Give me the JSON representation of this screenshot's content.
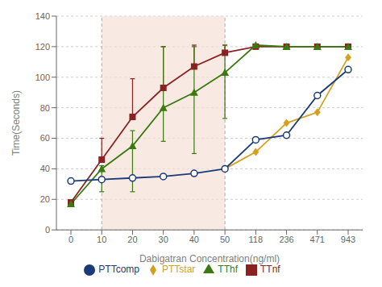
{
  "chart_data": {
    "type": "line",
    "xlabel": "Dabigatran Concentration(ng/ml)",
    "ylabel": "Time(Seconds)",
    "categories": [
      "0",
      "10",
      "20",
      "30",
      "40",
      "50",
      "118",
      "236",
      "471",
      "943"
    ],
    "series": [
      {
        "name": "TTnf",
        "color": "#8B2222",
        "marker": "square",
        "values": [
          18,
          46,
          74,
          93,
          107,
          116,
          120,
          120,
          120,
          120
        ],
        "error_plus": [
          0,
          14,
          25,
          27,
          14,
          5,
          0,
          0,
          0,
          0
        ],
        "error_minus": [
          0,
          0,
          0,
          0,
          0,
          0,
          0,
          0,
          0,
          0
        ]
      },
      {
        "name": "TThf",
        "color": "#3A7A10",
        "marker": "triangle",
        "values": [
          17,
          40,
          55,
          80,
          90,
          103,
          121,
          120,
          120,
          120
        ],
        "error_plus": [
          0,
          2,
          10,
          40,
          30,
          18,
          0,
          0,
          0,
          0
        ],
        "error_minus": [
          0,
          15,
          30,
          22,
          40,
          30,
          0,
          0,
          0,
          0
        ]
      },
      {
        "name": "PTTstar",
        "color": "#D4A020",
        "marker": "diamond",
        "values": [
          null,
          null,
          null,
          null,
          null,
          40,
          51,
          70,
          77,
          113
        ]
      },
      {
        "name": "PTTcomp",
        "color": "#1A3A7A",
        "marker": "circle",
        "values": [
          32,
          33,
          34,
          35,
          37,
          40,
          59,
          62,
          88,
          105
        ]
      }
    ],
    "ylim": [
      0,
      140
    ],
    "yticks": [
      0,
      20,
      40,
      60,
      80,
      100,
      120,
      140
    ],
    "grid": "y",
    "legend": "bottom",
    "highlight": {
      "from": "10",
      "to": "50",
      "color": "#F5E0D5"
    }
  }
}
